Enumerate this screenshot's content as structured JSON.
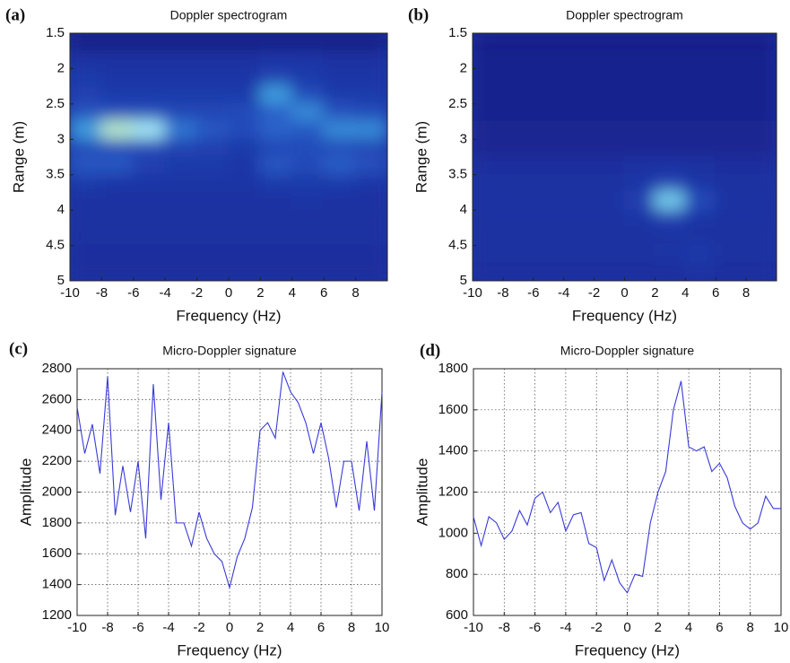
{
  "chart_data": [
    {
      "type": "heatmap",
      "panel_label": "(a)",
      "title": "Doppler spectrogram",
      "x_label": "Frequency (Hz)",
      "y_label": "Range (m)",
      "xlim": [
        -10,
        10
      ],
      "ylim": [
        1.5,
        5
      ],
      "y_inverted": true,
      "xticks": [
        -10,
        -8,
        -6,
        -4,
        -2,
        0,
        2,
        4,
        6,
        8
      ],
      "yticks": [
        1.5,
        2,
        2.5,
        3,
        3.5,
        4,
        4.5,
        5
      ],
      "colormap": [
        "#16177e",
        "#1d35a6",
        "#2a63cc",
        "#47b6e6",
        "#a8eefa",
        "#f6f64a"
      ],
      "x": [
        -9,
        -7,
        -5,
        -3,
        -1,
        1,
        3,
        5,
        7,
        9
      ],
      "y": [
        1.625,
        1.875,
        2.125,
        2.375,
        2.625,
        2.875,
        3.125,
        3.375,
        3.625,
        3.875,
        4.125,
        4.375,
        4.625,
        4.875
      ],
      "z": [
        [
          0.02,
          0.02,
          0.02,
          0.02,
          0.02,
          0.02,
          0.02,
          0.02,
          0.02,
          0.02
        ],
        [
          0.18,
          0.18,
          0.18,
          0.18,
          0.18,
          0.18,
          0.2,
          0.2,
          0.18,
          0.18
        ],
        [
          0.22,
          0.2,
          0.2,
          0.2,
          0.2,
          0.2,
          0.25,
          0.22,
          0.2,
          0.2
        ],
        [
          0.25,
          0.22,
          0.22,
          0.22,
          0.22,
          0.22,
          0.55,
          0.3,
          0.22,
          0.22
        ],
        [
          0.32,
          0.3,
          0.3,
          0.28,
          0.28,
          0.3,
          0.38,
          0.5,
          0.32,
          0.3
        ],
        [
          0.55,
          0.85,
          0.8,
          0.45,
          0.35,
          0.3,
          0.4,
          0.35,
          0.5,
          0.5
        ],
        [
          0.3,
          0.3,
          0.28,
          0.26,
          0.25,
          0.22,
          0.28,
          0.3,
          0.3,
          0.28
        ],
        [
          0.35,
          0.35,
          0.25,
          0.22,
          0.22,
          0.2,
          0.35,
          0.3,
          0.38,
          0.32
        ],
        [
          0.22,
          0.2,
          0.2,
          0.2,
          0.2,
          0.2,
          0.22,
          0.22,
          0.22,
          0.2
        ],
        [
          0.18,
          0.18,
          0.18,
          0.18,
          0.18,
          0.18,
          0.18,
          0.2,
          0.18,
          0.18
        ],
        [
          0.18,
          0.17,
          0.17,
          0.17,
          0.17,
          0.17,
          0.17,
          0.17,
          0.17,
          0.17
        ],
        [
          0.17,
          0.17,
          0.17,
          0.17,
          0.17,
          0.17,
          0.17,
          0.17,
          0.17,
          0.17
        ],
        [
          0.16,
          0.16,
          0.16,
          0.16,
          0.16,
          0.16,
          0.16,
          0.16,
          0.16,
          0.16
        ],
        [
          0.15,
          0.15,
          0.15,
          0.15,
          0.15,
          0.15,
          0.15,
          0.15,
          0.15,
          0.15
        ]
      ]
    },
    {
      "type": "heatmap",
      "panel_label": "(b)",
      "title": "Doppler spectrogram",
      "x_label": "Frequency (Hz)",
      "y_label": "Range (m)",
      "xlim": [
        -10,
        10
      ],
      "ylim": [
        1.5,
        5
      ],
      "y_inverted": true,
      "xticks": [
        -10,
        -8,
        -6,
        -4,
        -2,
        0,
        2,
        4,
        6,
        8
      ],
      "yticks": [
        1.5,
        2,
        2.5,
        3,
        3.5,
        4,
        4.5,
        5
      ],
      "colormap": [
        "#16177e",
        "#1d35a6",
        "#2a63cc",
        "#47b6e6",
        "#a8eefa",
        "#f6f64a"
      ],
      "x": [
        -9,
        -7,
        -5,
        -3,
        -1,
        1,
        3,
        5,
        7,
        9
      ],
      "y": [
        1.625,
        1.875,
        2.125,
        2.375,
        2.625,
        2.875,
        3.125,
        3.375,
        3.625,
        3.875,
        4.125,
        4.375,
        4.625,
        4.875
      ],
      "z": [
        [
          0.05,
          0.05,
          0.05,
          0.05,
          0.05,
          0.05,
          0.05,
          0.05,
          0.05,
          0.05
        ],
        [
          0.08,
          0.08,
          0.08,
          0.08,
          0.08,
          0.08,
          0.08,
          0.08,
          0.08,
          0.08
        ],
        [
          0.08,
          0.08,
          0.08,
          0.08,
          0.08,
          0.08,
          0.08,
          0.08,
          0.08,
          0.08
        ],
        [
          0.08,
          0.08,
          0.08,
          0.08,
          0.08,
          0.08,
          0.08,
          0.08,
          0.08,
          0.08
        ],
        [
          0.08,
          0.08,
          0.08,
          0.08,
          0.08,
          0.08,
          0.08,
          0.08,
          0.08,
          0.08
        ],
        [
          0.1,
          0.1,
          0.1,
          0.1,
          0.1,
          0.1,
          0.1,
          0.1,
          0.1,
          0.1
        ],
        [
          0.1,
          0.1,
          0.1,
          0.1,
          0.1,
          0.1,
          0.1,
          0.1,
          0.1,
          0.1
        ],
        [
          0.16,
          0.16,
          0.16,
          0.16,
          0.16,
          0.18,
          0.18,
          0.17,
          0.16,
          0.16
        ],
        [
          0.18,
          0.17,
          0.17,
          0.17,
          0.17,
          0.2,
          0.25,
          0.2,
          0.17,
          0.17
        ],
        [
          0.18,
          0.18,
          0.18,
          0.18,
          0.18,
          0.25,
          0.7,
          0.3,
          0.18,
          0.18
        ],
        [
          0.18,
          0.18,
          0.18,
          0.18,
          0.18,
          0.2,
          0.25,
          0.2,
          0.18,
          0.18
        ],
        [
          0.17,
          0.17,
          0.17,
          0.17,
          0.17,
          0.17,
          0.18,
          0.18,
          0.17,
          0.17
        ],
        [
          0.17,
          0.17,
          0.17,
          0.17,
          0.17,
          0.17,
          0.2,
          0.22,
          0.17,
          0.17
        ],
        [
          0.16,
          0.16,
          0.16,
          0.16,
          0.16,
          0.16,
          0.16,
          0.18,
          0.16,
          0.16
        ]
      ]
    },
    {
      "type": "line",
      "panel_label": "(c)",
      "title": "Micro-Doppler signature",
      "x_label": "Frequency (Hz)",
      "y_label": "Amplitude",
      "xlim": [
        -10,
        10
      ],
      "ylim": [
        1200,
        2800
      ],
      "grid": true,
      "color": "#3a3ad8",
      "xticks": [
        -10,
        -8,
        -6,
        -4,
        -2,
        0,
        2,
        4,
        6,
        8,
        10
      ],
      "yticks": [
        1200,
        1400,
        1600,
        1800,
        2000,
        2200,
        2400,
        2600,
        2800
      ],
      "x": [
        -10,
        -9.5,
        -9,
        -8.5,
        -8,
        -7.5,
        -7,
        -6.5,
        -6,
        -5.5,
        -5,
        -4.5,
        -4,
        -3.5,
        -3,
        -2.5,
        -2,
        -1.5,
        -1,
        -0.5,
        0,
        0.5,
        1,
        1.5,
        2,
        2.5,
        3,
        3.5,
        4,
        4.5,
        5,
        5.5,
        6,
        6.5,
        7,
        7.5,
        8,
        8.5,
        9,
        9.5,
        10
      ],
      "values": [
        2550,
        2250,
        2440,
        2120,
        2750,
        1850,
        2170,
        1870,
        2200,
        1700,
        2700,
        1950,
        2450,
        1800,
        1800,
        1650,
        1870,
        1700,
        1600,
        1550,
        1380,
        1580,
        1700,
        1900,
        2400,
        2450,
        2350,
        2780,
        2650,
        2580,
        2450,
        2250,
        2450,
        2220,
        1900,
        2200,
        2200,
        1880,
        2330,
        1880,
        2650
      ]
    },
    {
      "type": "line",
      "panel_label": "(d)",
      "title": "Micro-Doppler signature",
      "x_label": "Frequency (Hz)",
      "y_label": "Amplitude",
      "xlim": [
        -10,
        10
      ],
      "ylim": [
        600,
        1800
      ],
      "grid": true,
      "color": "#3a3ad8",
      "xticks": [
        -10,
        -8,
        -6,
        -4,
        -2,
        0,
        2,
        4,
        6,
        8,
        10
      ],
      "yticks": [
        600,
        800,
        1000,
        1200,
        1400,
        1600,
        1800
      ],
      "x": [
        -10,
        -9.5,
        -9,
        -8.5,
        -8,
        -7.5,
        -7,
        -6.5,
        -6,
        -5.5,
        -5,
        -4.5,
        -4,
        -3.5,
        -3,
        -2.5,
        -2,
        -1.5,
        -1,
        -0.5,
        0,
        0.5,
        1,
        1.5,
        2,
        2.5,
        3,
        3.5,
        4,
        4.5,
        5,
        5.5,
        6,
        6.5,
        7,
        7.5,
        8,
        8.5,
        9,
        9.5,
        10
      ],
      "values": [
        1080,
        940,
        1080,
        1050,
        970,
        1010,
        1110,
        1040,
        1170,
        1200,
        1100,
        1150,
        1010,
        1090,
        1100,
        950,
        930,
        770,
        870,
        760,
        710,
        800,
        790,
        1050,
        1200,
        1300,
        1600,
        1740,
        1420,
        1400,
        1420,
        1300,
        1340,
        1270,
        1130,
        1050,
        1020,
        1050,
        1180,
        1120,
        1120
      ]
    }
  ]
}
